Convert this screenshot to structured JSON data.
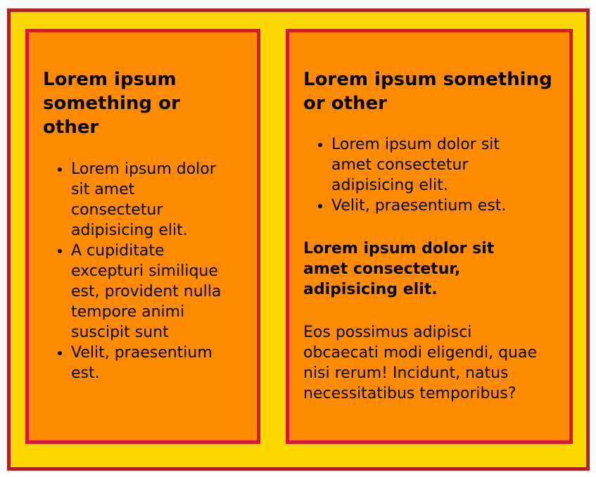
{
  "colors": {
    "outer_background": "#ffd700",
    "outer_border": "#b22222",
    "card_background": "#ff8c00",
    "card_border": "#dc143c"
  },
  "left_card": {
    "heading": "Lorem ipsum something or other",
    "items": [
      "Lorem ipsum dolor sit amet consectetur adipisicing elit.",
      "A cupiditate excepturi similique est, provident nulla tempore animi suscipit sunt",
      "Velit, praesentium est."
    ]
  },
  "right_card": {
    "heading": "Lorem ipsum something or other",
    "items": [
      "Lorem ipsum dolor sit amet consectetur adipisicing elit.",
      "Velit, praesentium est."
    ],
    "subheading": "Lorem ipsum dolor sit amet consectetur, adipisicing elit.",
    "paragraph": "Eos possimus adipisci obcaecati modi eligendi, quae nisi rerum! Incidunt, natus necessitatibus temporibus?"
  }
}
